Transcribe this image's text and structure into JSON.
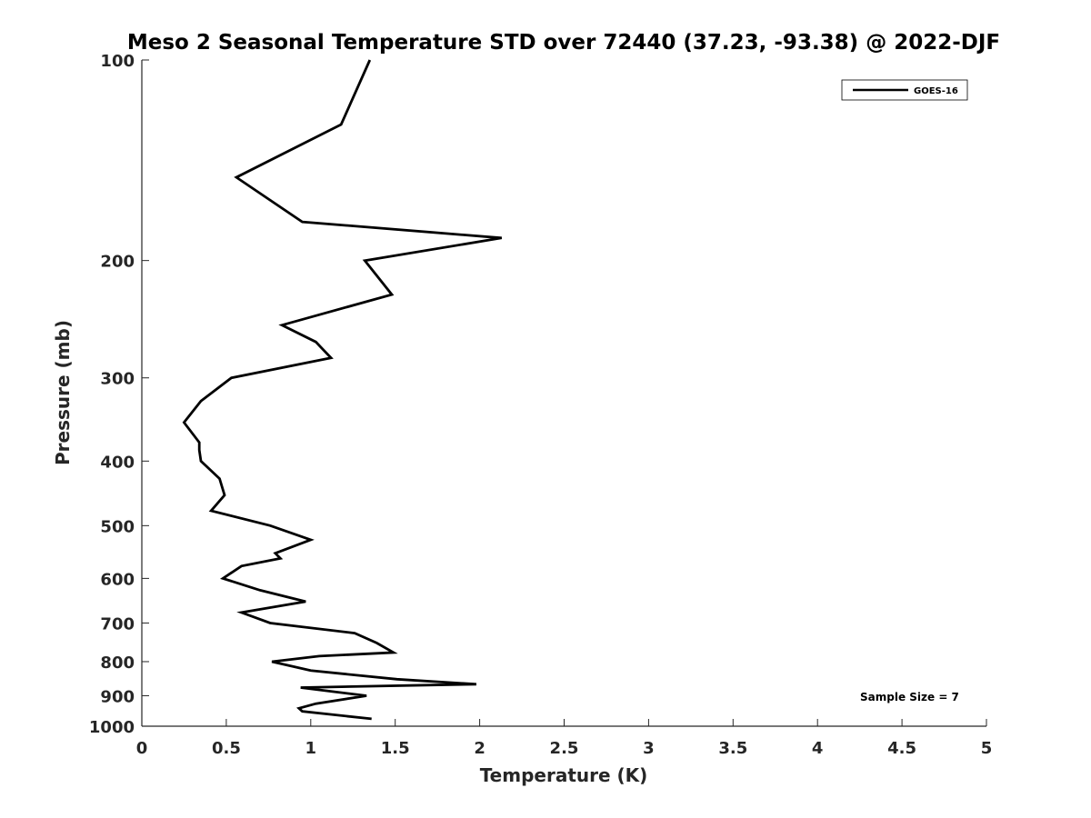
{
  "chart_data": {
    "type": "line",
    "title": "Meso 2 Seasonal Temperature STD over 72440 (37.23, -93.38) @ 2022-DJF",
    "xlabel": "Temperature (K)",
    "ylabel": "Pressure (mb)",
    "xlim": [
      0,
      5
    ],
    "ylim": [
      1000,
      100
    ],
    "y_scale": "log",
    "y_reversed": true,
    "grid": false,
    "legend_position": "top-right",
    "x_ticks": [
      "0",
      "0.5",
      "1",
      "1.5",
      "2",
      "2.5",
      "3",
      "3.5",
      "4",
      "4.5",
      "5"
    ],
    "y_ticks": [
      "100",
      "200",
      "300",
      "400",
      "500",
      "600",
      "700",
      "800",
      "900",
      "1000"
    ],
    "series": [
      {
        "name": "GOES-16",
        "color": "#000000",
        "x": [
          1.35,
          1.18,
          0.56,
          0.95,
          2.13,
          1.32,
          1.48,
          0.83,
          1.03,
          1.12,
          0.53,
          0.35,
          0.25,
          0.34,
          0.34,
          0.35,
          0.46,
          0.49,
          0.41,
          0.76,
          1.0,
          0.79,
          0.82,
          0.59,
          0.48,
          0.7,
          0.97,
          0.59,
          0.76,
          1.26,
          1.39,
          1.49,
          1.05,
          0.77,
          1.0,
          1.51,
          1.98,
          0.94,
          1.33,
          1.03,
          0.93,
          0.95,
          1.36
        ],
        "y": [
          100,
          125,
          150,
          175,
          185,
          200,
          225,
          250,
          265,
          280,
          300,
          325,
          350,
          375,
          385,
          400,
          425,
          450,
          475,
          500,
          525,
          550,
          560,
          575,
          600,
          625,
          650,
          675,
          700,
          725,
          750,
          775,
          785,
          800,
          825,
          850,
          865,
          875,
          900,
          925,
          940,
          950,
          975
        ]
      }
    ],
    "annotations": [
      "Sample Size = 7"
    ]
  }
}
